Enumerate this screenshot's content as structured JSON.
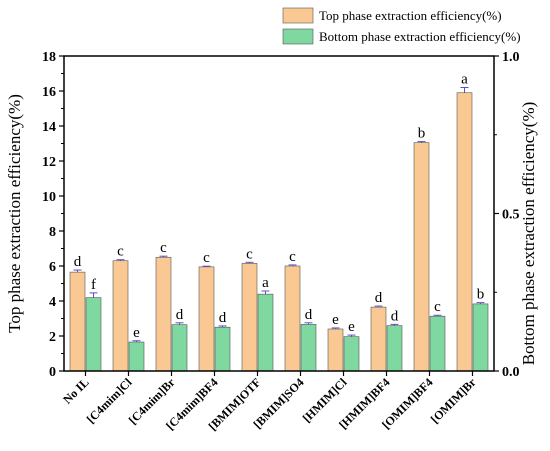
{
  "chart_data": {
    "type": "bar",
    "categories": [
      "No IL",
      "[C4mim]Cl",
      "[C4mim]Br",
      "[C4mim]BF4",
      "[BMIM]OTF",
      "[BMIM]SO4",
      "[HMIM]Cl",
      "[HMIM]BF4",
      "[OMIM]BF4",
      "[OMIM]Br"
    ],
    "series": [
      {
        "name": "Top phase extraction efficiency(%)",
        "axis": "left",
        "color": "#FAC993",
        "values": [
          5.65,
          6.3,
          6.5,
          5.95,
          6.15,
          6.0,
          2.4,
          3.65,
          13.05,
          15.9
        ],
        "errors": [
          0.12,
          0.06,
          0.06,
          0.04,
          0.06,
          0.06,
          0.06,
          0.06,
          0.06,
          0.3
        ],
        "labels": [
          "d",
          "c",
          "c",
          "c",
          "c",
          "c",
          "e",
          "d",
          "b",
          "a"
        ]
      },
      {
        "name": "Bottom phase extraction efficiency(%)",
        "axis": "right",
        "color": "#7ED8A0",
        "values": [
          0.233,
          0.092,
          0.147,
          0.139,
          0.244,
          0.148,
          0.109,
          0.144,
          0.174,
          0.213
        ],
        "errors": [
          0.015,
          0.004,
          0.006,
          0.004,
          0.01,
          0.005,
          0.005,
          0.004,
          0.003,
          0.004
        ],
        "labels": [
          "f",
          "e",
          "d",
          "d",
          "a",
          "d",
          "e",
          "d",
          "c",
          "b"
        ]
      }
    ],
    "ylabel": "Top phase extraction efficiency(%)",
    "y2label": "Bottom phase extraction efficiency(%)",
    "ylim": [
      0,
      18
    ],
    "yticks": [
      "0",
      "2",
      "4",
      "6",
      "8",
      "10",
      "12",
      "14",
      "16",
      "18"
    ],
    "y2lim": [
      0,
      1.0
    ],
    "y2ticks": [
      "0.0",
      "0.5",
      "1.0"
    ],
    "legend_position": "top-right",
    "grid": false
  }
}
